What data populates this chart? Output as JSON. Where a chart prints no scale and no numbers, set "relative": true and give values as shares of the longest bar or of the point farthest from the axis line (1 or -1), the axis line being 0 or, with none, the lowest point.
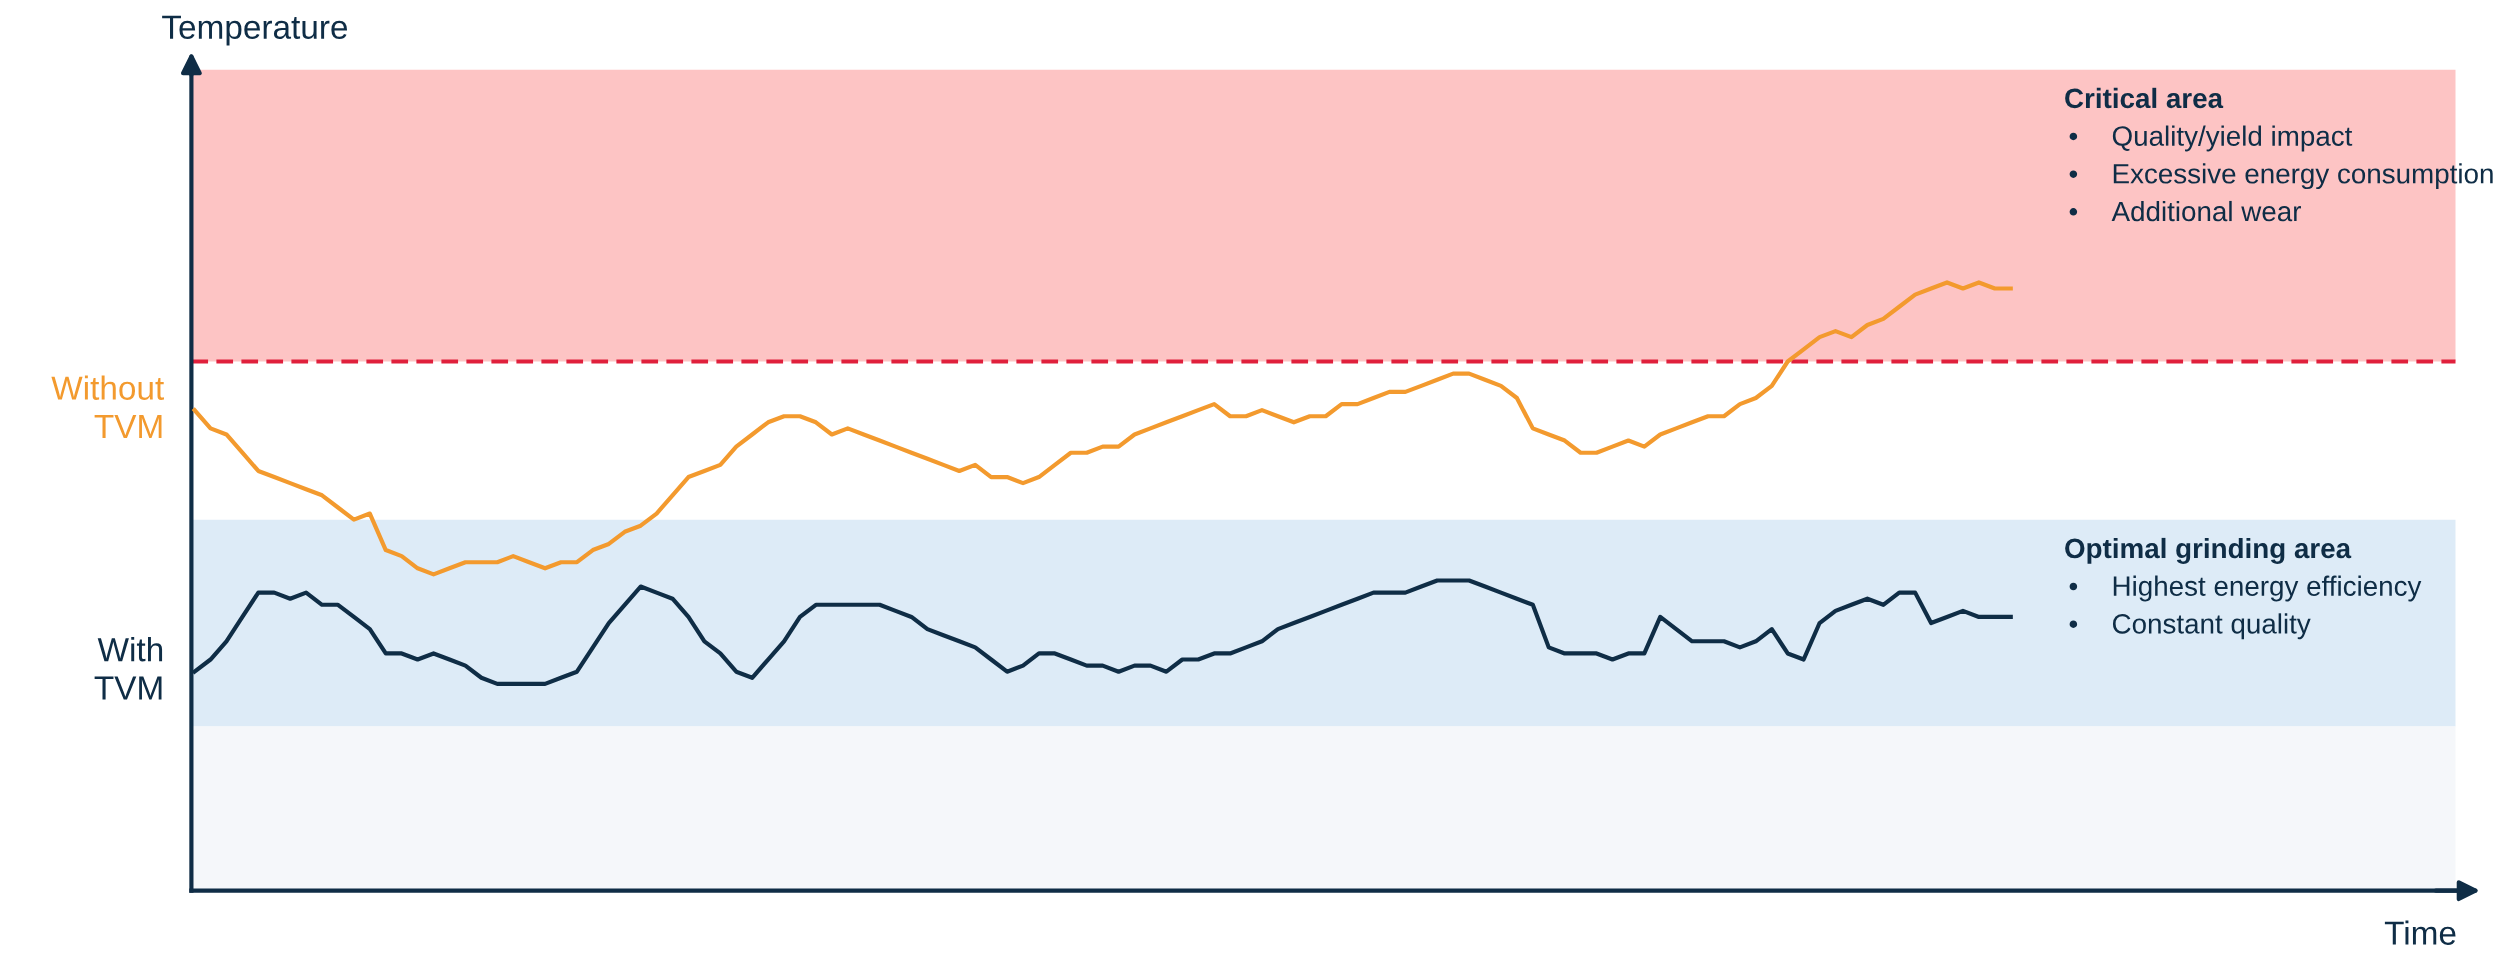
{
  "chart_data": {
    "type": "line",
    "relative": true,
    "annotations": [
      "Temperature",
      "Time"
    ],
    "legend": false,
    "categories": [
      null,
      null,
      null,
      null,
      null,
      null,
      null,
      null,
      null,
      null,
      null,
      null,
      null,
      null,
      null,
      null,
      null,
      null,
      null,
      null,
      null,
      null,
      null,
      null,
      null,
      null,
      null,
      null,
      null,
      null,
      null,
      null,
      null,
      null,
      null,
      null,
      null,
      null,
      null,
      null,
      null,
      null,
      null,
      null,
      null,
      null,
      null,
      null,
      null,
      null,
      null,
      null,
      null,
      null,
      null,
      null,
      null,
      null,
      null,
      null,
      null,
      null,
      null,
      null,
      null,
      null,
      null,
      null,
      null,
      null,
      null,
      null,
      null,
      null,
      null,
      null,
      null,
      null,
      null,
      null,
      null,
      null,
      null,
      null,
      null,
      null,
      null,
      null,
      null,
      null,
      null,
      null,
      null,
      null,
      null,
      null,
      null,
      null,
      null,
      null,
      null,
      null,
      null,
      null,
      null,
      null,
      null,
      null,
      null,
      null,
      null,
      null,
      null,
      null,
      null
    ],
    "series": [
      {
        "name": "Without TVM",
        "color": "#f39a2e",
        "values": [
          0.79,
          0.76,
          0.75,
          0.72,
          0.69,
          0.68,
          0.67,
          0.66,
          0.65,
          0.63,
          0.61,
          0.62,
          0.56,
          0.55,
          0.53,
          0.52,
          0.53,
          0.54,
          0.54,
          0.54,
          0.55,
          0.54,
          0.53,
          0.54,
          0.54,
          0.56,
          0.57,
          0.59,
          0.6,
          0.62,
          0.65,
          0.68,
          0.69,
          0.7,
          0.73,
          0.75,
          0.77,
          0.78,
          0.78,
          0.77,
          0.75,
          0.76,
          0.75,
          0.74,
          0.73,
          0.72,
          0.71,
          0.7,
          0.69,
          0.7,
          0.68,
          0.68,
          0.67,
          0.68,
          0.7,
          0.72,
          0.72,
          0.73,
          0.73,
          0.75,
          0.76,
          0.77,
          0.78,
          0.79,
          0.8,
          0.78,
          0.78,
          0.79,
          0.78,
          0.77,
          0.78,
          0.78,
          0.8,
          0.8,
          0.81,
          0.82,
          0.82,
          0.83,
          0.84,
          0.85,
          0.85,
          0.84,
          0.83,
          0.81,
          0.76,
          0.75,
          0.74,
          0.72,
          0.72,
          0.73,
          0.74,
          0.73,
          0.75,
          0.76,
          0.77,
          0.78,
          0.78,
          0.8,
          0.81,
          0.83,
          0.87,
          0.89,
          0.91,
          0.92,
          0.91,
          0.93,
          0.94,
          0.96,
          0.98,
          0.99,
          1.0,
          0.99,
          1.0,
          0.99,
          0.99
        ]
      },
      {
        "name": "With TVM",
        "color": "#0f2d46",
        "values": [
          0.36,
          0.38,
          0.41,
          0.45,
          0.49,
          0.49,
          0.48,
          0.49,
          0.47,
          0.47,
          0.45,
          0.43,
          0.39,
          0.39,
          0.38,
          0.39,
          0.38,
          0.37,
          0.35,
          0.34,
          0.34,
          0.34,
          0.34,
          0.35,
          0.36,
          0.4,
          0.44,
          0.47,
          0.5,
          0.49,
          0.48,
          0.45,
          0.41,
          0.39,
          0.36,
          0.35,
          0.38,
          0.41,
          0.45,
          0.47,
          0.47,
          0.47,
          0.47,
          0.47,
          0.46,
          0.45,
          0.43,
          0.42,
          0.41,
          0.4,
          0.38,
          0.36,
          0.37,
          0.39,
          0.39,
          0.38,
          0.37,
          0.37,
          0.36,
          0.37,
          0.37,
          0.36,
          0.38,
          0.38,
          0.39,
          0.39,
          0.4,
          0.41,
          0.43,
          0.44,
          0.45,
          0.46,
          0.47,
          0.48,
          0.49,
          0.49,
          0.49,
          0.5,
          0.51,
          0.51,
          0.51,
          0.5,
          0.49,
          0.48,
          0.47,
          0.4,
          0.39,
          0.39,
          0.39,
          0.38,
          0.39,
          0.39,
          0.45,
          0.43,
          0.41,
          0.41,
          0.41,
          0.4,
          0.41,
          0.43,
          0.39,
          0.38,
          0.44,
          0.46,
          0.47,
          0.48,
          0.47,
          0.49,
          0.49,
          0.44,
          0.45,
          0.46,
          0.45,
          0.45,
          0.45
        ]
      }
    ],
    "bands": [
      {
        "axis": "y",
        "from": 0.87,
        "to": 1.35,
        "color": "#fdc4c4",
        "label": "Critical area\n•\tQuality/yield impact\n•\tExcessive energy consumption\n•\tAdditional wear"
      },
      {
        "axis": "y",
        "from": 0.27,
        "to": 0.61,
        "color": "#ddebf7",
        "label": "Optimal grinding area\n•\tHighest energy efficiency\n•\tConstant quality"
      },
      {
        "axis": "y",
        "from": 0,
        "to": 0.27,
        "color": "#f5f7fa"
      }
    ],
    "ref_lines": [
      {
        "axis": "y",
        "value": 0.87,
        "color": "#e0203c",
        "line_style": "dashed"
      }
    ]
  }
}
